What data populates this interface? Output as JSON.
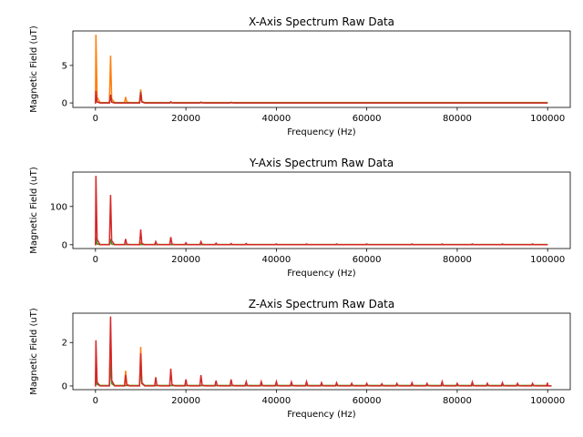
{
  "chart_data": [
    {
      "type": "line",
      "title": "X-Axis Spectrum Raw Data",
      "xlabel": "Frequency (Hz)",
      "ylabel": "Magnetic Field (uT)",
      "xlim": [
        -5000,
        105000
      ],
      "ylim": [
        -0.6,
        9.6
      ],
      "xticks": [
        0,
        20000,
        40000,
        60000,
        80000,
        100000
      ],
      "xtick_labels": [
        "0",
        "20000",
        "40000",
        "60000",
        "80000",
        "100000"
      ],
      "yticks": [
        0,
        5
      ],
      "ytick_labels": [
        "0",
        "5"
      ],
      "series": [
        {
          "name": "orange",
          "color": "#ff7f0e",
          "baseline": 0.05,
          "peaks": [
            [
              100,
              9.1
            ],
            [
              3333,
              6.3
            ],
            [
              6667,
              0.8
            ],
            [
              10000,
              1.8
            ]
          ]
        },
        {
          "name": "green",
          "color": "#2ca02c",
          "baseline": 0.02,
          "peaks": [
            [
              100,
              1.2
            ],
            [
              3333,
              1.0
            ],
            [
              10000,
              1.5
            ]
          ]
        },
        {
          "name": "red",
          "color": "#d62728",
          "baseline": 0.0,
          "peaks": [
            [
              100,
              1.6
            ],
            [
              3333,
              1.1
            ],
            [
              10000,
              1.4
            ],
            [
              16667,
              0.15
            ],
            [
              23333,
              0.1
            ],
            [
              30000,
              0.08
            ]
          ]
        }
      ]
    },
    {
      "type": "line",
      "title": "Y-Axis Spectrum Raw Data",
      "xlabel": "Frequency (Hz)",
      "ylabel": "Magnetic Field (uT)",
      "xlim": [
        -5000,
        105000
      ],
      "ylim": [
        -10,
        190
      ],
      "xticks": [
        0,
        20000,
        40000,
        60000,
        80000,
        100000
      ],
      "xtick_labels": [
        "0",
        "20000",
        "40000",
        "60000",
        "80000",
        "100000"
      ],
      "yticks": [
        0,
        100
      ],
      "ytick_labels": [
        "0",
        "100"
      ],
      "series": [
        {
          "name": "orange",
          "color": "#ff7f0e",
          "baseline": 0.5,
          "peaks": [
            [
              100,
              12
            ],
            [
              3333,
              8
            ],
            [
              10000,
              5
            ]
          ]
        },
        {
          "name": "green",
          "color": "#2ca02c",
          "baseline": 0.5,
          "peaks": [
            [
              100,
              20
            ],
            [
              3333,
              15
            ]
          ]
        },
        {
          "name": "red",
          "color": "#d62728",
          "baseline": 0.0,
          "peaks": [
            [
              100,
              180
            ],
            [
              3333,
              130
            ],
            [
              6667,
              15
            ],
            [
              10000,
              40
            ],
            [
              13333,
              8
            ],
            [
              16667,
              20
            ],
            [
              20000,
              5
            ],
            [
              23333,
              8
            ],
            [
              26667,
              4
            ],
            [
              30000,
              3
            ],
            [
              33333,
              3
            ],
            [
              40000,
              2
            ],
            [
              46667,
              2
            ],
            [
              53333,
              2
            ],
            [
              60000,
              2
            ],
            [
              70000,
              2
            ],
            [
              76667,
              2
            ],
            [
              83333,
              2
            ],
            [
              90000,
              2
            ],
            [
              96667,
              2
            ]
          ]
        }
      ]
    },
    {
      "type": "line",
      "title": "Z-Axis Spectrum Raw Data",
      "xlabel": "Frequency (Hz)",
      "ylabel": "Magnetic Field (uT)",
      "xlim": [
        -5000,
        105000
      ],
      "ylim": [
        -0.17,
        3.35
      ],
      "xticks": [
        0,
        20000,
        40000,
        60000,
        80000,
        100000
      ],
      "xtick_labels": [
        "0",
        "20000",
        "40000",
        "60000",
        "80000",
        "100000"
      ],
      "yticks": [
        0,
        2
      ],
      "ytick_labels": [
        "0",
        "2"
      ],
      "series": [
        {
          "name": "orange",
          "color": "#ff7f0e",
          "baseline": 0.02,
          "peaks": [
            [
              100,
              1.2
            ],
            [
              3333,
              2.5
            ],
            [
              6667,
              0.7
            ],
            [
              10000,
              1.8
            ]
          ]
        },
        {
          "name": "green",
          "color": "#2ca02c",
          "baseline": 0.02,
          "peaks": [
            [
              100,
              0.6
            ],
            [
              3333,
              1.0
            ],
            [
              10000,
              1.2
            ]
          ]
        },
        {
          "name": "red",
          "color": "#d62728",
          "baseline": 0.0,
          "peaks": [
            [
              100,
              2.1
            ],
            [
              3333,
              3.2
            ],
            [
              6667,
              0.5
            ],
            [
              10000,
              1.5
            ],
            [
              13333,
              0.4
            ],
            [
              16667,
              0.8
            ],
            [
              20000,
              0.3
            ],
            [
              23333,
              0.5
            ],
            [
              26667,
              0.25
            ],
            [
              30000,
              0.3
            ],
            [
              33333,
              0.2
            ],
            [
              36667,
              0.2
            ],
            [
              40000,
              0.2
            ],
            [
              43333,
              0.18
            ],
            [
              46667,
              0.2
            ],
            [
              50000,
              0.15
            ],
            [
              53333,
              0.15
            ],
            [
              56667,
              0.12
            ],
            [
              60000,
              0.12
            ],
            [
              63333,
              0.1
            ],
            [
              66667,
              0.12
            ],
            [
              70000,
              0.15
            ],
            [
              73333,
              0.12
            ],
            [
              76667,
              0.2
            ],
            [
              80000,
              0.12
            ],
            [
              83333,
              0.18
            ],
            [
              86667,
              0.12
            ],
            [
              90000,
              0.15
            ],
            [
              93333,
              0.12
            ],
            [
              96667,
              0.12
            ],
            [
              100000,
              0.15
            ]
          ]
        }
      ]
    }
  ]
}
